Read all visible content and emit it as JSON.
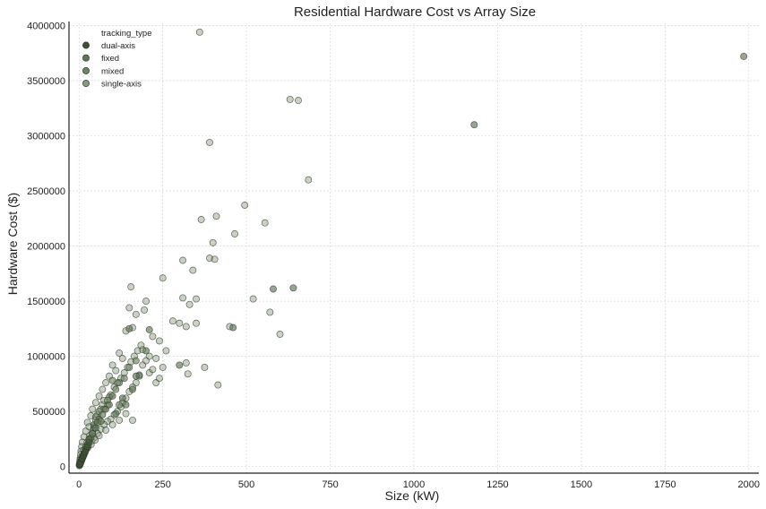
{
  "chart_data": {
    "type": "scatter",
    "title": "Residential Hardware Cost vs Array Size",
    "xlabel": "Size (kW)",
    "ylabel": "Hardware Cost ($)",
    "xlim": [
      -30,
      2030
    ],
    "ylim": [
      -60000,
      4020000
    ],
    "x_ticks": [
      0,
      250,
      500,
      750,
      1000,
      1250,
      1500,
      1750,
      2000
    ],
    "y_ticks": [
      0,
      500000,
      1000000,
      1500000,
      2000000,
      2500000,
      3000000,
      3500000,
      4000000
    ],
    "grid": true,
    "legend": {
      "title": "tracking_type",
      "placement": "top-left"
    },
    "series": [
      {
        "name": "dual-axis",
        "color": "#3f4f36",
        "points": [
          [
            2,
            15000
          ],
          [
            4,
            30000
          ],
          [
            6,
            45000
          ],
          [
            8,
            60000
          ],
          [
            10,
            75000
          ],
          [
            12,
            90000
          ],
          [
            15,
            110000
          ],
          [
            20,
            150000
          ],
          [
            25,
            180000
          ],
          [
            30,
            220000
          ],
          [
            5,
            40000
          ],
          [
            9,
            70000
          ],
          [
            14,
            100000
          ],
          [
            18,
            130000
          ],
          [
            3,
            20000
          ]
        ]
      },
      {
        "name": "fixed",
        "color": "#5f7556",
        "points": [
          [
            1985,
            3720000
          ],
          [
            1180,
            3100000
          ],
          [
            640,
            1620000
          ],
          [
            580,
            1610000
          ],
          [
            460,
            1260000
          ],
          [
            300,
            920000
          ],
          [
            200,
            1050000
          ],
          [
            180,
            830000
          ],
          [
            150,
            1250000
          ],
          [
            120,
            760000
          ],
          [
            100,
            640000
          ],
          [
            80,
            520000
          ],
          [
            60,
            430000
          ],
          [
            45,
            380000
          ],
          [
            35,
            260000
          ],
          [
            25,
            200000
          ],
          [
            15,
            120000
          ],
          [
            10,
            80000
          ],
          [
            5,
            40000
          ],
          [
            3,
            25000
          ],
          [
            2,
            12000
          ],
          [
            1,
            8000
          ],
          [
            210,
            1240000
          ],
          [
            170,
            820000
          ],
          [
            90,
            560000
          ],
          [
            70,
            470000
          ],
          [
            55,
            400000
          ],
          [
            40,
            300000
          ],
          [
            30,
            240000
          ],
          [
            20,
            160000
          ],
          [
            12,
            90000
          ],
          [
            8,
            60000
          ],
          [
            6,
            48000
          ],
          [
            4,
            30000
          ],
          [
            160,
            700000
          ],
          [
            140,
            560000
          ],
          [
            110,
            480000
          ],
          [
            130,
            620000
          ],
          [
            50,
            350000
          ],
          [
            65,
            410000
          ]
        ]
      },
      {
        "name": "mixed",
        "color": "#6f8463",
        "points": [
          [
            50,
            450000
          ],
          [
            90,
            630000
          ],
          [
            170,
            960000
          ],
          [
            40,
            300000
          ],
          [
            100,
            780000
          ],
          [
            120,
            560000
          ],
          [
            75,
            520000
          ],
          [
            150,
            900000
          ],
          [
            30,
            250000
          ],
          [
            20,
            180000
          ],
          [
            60,
            500000
          ],
          [
            85,
            600000
          ],
          [
            110,
            700000
          ],
          [
            135,
            800000
          ],
          [
            45,
            350000
          ]
        ]
      },
      {
        "name": "single-axis",
        "color": "#889a7d",
        "points": [
          [
            360,
            3940000
          ],
          [
            630,
            3330000
          ],
          [
            655,
            3320000
          ],
          [
            390,
            2940000
          ],
          [
            685,
            2600000
          ],
          [
            495,
            2370000
          ],
          [
            410,
            2270000
          ],
          [
            365,
            2240000
          ],
          [
            555,
            2210000
          ],
          [
            465,
            2110000
          ],
          [
            400,
            2030000
          ],
          [
            250,
            1710000
          ],
          [
            390,
            1890000
          ],
          [
            405,
            1880000
          ],
          [
            310,
            1870000
          ],
          [
            340,
            1780000
          ],
          [
            155,
            1630000
          ],
          [
            520,
            1520000
          ],
          [
            570,
            1400000
          ],
          [
            600,
            1200000
          ],
          [
            310,
            1530000
          ],
          [
            330,
            1470000
          ],
          [
            350,
            1520000
          ],
          [
            200,
            1500000
          ],
          [
            195,
            1420000
          ],
          [
            150,
            1440000
          ],
          [
            170,
            1380000
          ],
          [
            300,
            1300000
          ],
          [
            280,
            1320000
          ],
          [
            320,
            1270000
          ],
          [
            350,
            1300000
          ],
          [
            450,
            1270000
          ],
          [
            220,
            1180000
          ],
          [
            240,
            1140000
          ],
          [
            140,
            1230000
          ],
          [
            160,
            1260000
          ],
          [
            260,
            1050000
          ],
          [
            190,
            1060000
          ],
          [
            210,
            1000000
          ],
          [
            230,
            980000
          ],
          [
            250,
            900000
          ],
          [
            320,
            940000
          ],
          [
            325,
            840000
          ],
          [
            375,
            900000
          ],
          [
            415,
            740000
          ],
          [
            120,
            1030000
          ],
          [
            130,
            980000
          ],
          [
            100,
            920000
          ],
          [
            110,
            870000
          ],
          [
            90,
            820000
          ],
          [
            80,
            760000
          ],
          [
            70,
            700000
          ],
          [
            60,
            640000
          ],
          [
            50,
            580000
          ],
          [
            40,
            520000
          ],
          [
            35,
            460000
          ],
          [
            25,
            400000
          ],
          [
            30,
            360000
          ],
          [
            20,
            320000
          ],
          [
            15,
            270000
          ],
          [
            10,
            220000
          ],
          [
            8,
            180000
          ],
          [
            6,
            140000
          ],
          [
            5,
            110000
          ],
          [
            4,
            80000
          ],
          [
            3,
            60000
          ],
          [
            2,
            40000
          ],
          [
            1,
            20000
          ],
          [
            180,
            820000
          ],
          [
            170,
            760000
          ],
          [
            160,
            720000
          ],
          [
            150,
            680000
          ],
          [
            140,
            620000
          ],
          [
            130,
            580000
          ],
          [
            125,
            540000
          ],
          [
            115,
            500000
          ],
          [
            105,
            470000
          ],
          [
            95,
            430000
          ],
          [
            85,
            410000
          ],
          [
            75,
            380000
          ],
          [
            65,
            340000
          ],
          [
            55,
            300000
          ],
          [
            45,
            260000
          ],
          [
            38,
            230000
          ],
          [
            28,
            190000
          ],
          [
            22,
            160000
          ],
          [
            18,
            130000
          ],
          [
            12,
            100000
          ],
          [
            9,
            80000
          ],
          [
            7,
            60000
          ],
          [
            160,
            420000
          ],
          [
            140,
            480000
          ],
          [
            120,
            420000
          ],
          [
            100,
            380000
          ],
          [
            80,
            330000
          ],
          [
            60,
            280000
          ],
          [
            48,
            240000
          ],
          [
            36,
            200000
          ],
          [
            26,
            170000
          ],
          [
            16,
            120000
          ],
          [
            85,
            560000
          ],
          [
            95,
            650000
          ],
          [
            105,
            720000
          ],
          [
            115,
            760000
          ],
          [
            125,
            800000
          ],
          [
            135,
            850000
          ],
          [
            145,
            900000
          ],
          [
            155,
            950000
          ],
          [
            165,
            1000000
          ],
          [
            175,
            1050000
          ],
          [
            185,
            1100000
          ],
          [
            190,
            920000
          ],
          [
            200,
            960000
          ],
          [
            210,
            850000
          ],
          [
            220,
            880000
          ],
          [
            230,
            760000
          ],
          [
            240,
            800000
          ],
          [
            50,
            420000
          ],
          [
            55,
            470000
          ],
          [
            65,
            520000
          ],
          [
            70,
            560000
          ],
          [
            75,
            600000
          ],
          [
            45,
            360000
          ],
          [
            42,
            330000
          ],
          [
            32,
            280000
          ],
          [
            24,
            220000
          ],
          [
            14,
            150000
          ]
        ]
      }
    ]
  }
}
